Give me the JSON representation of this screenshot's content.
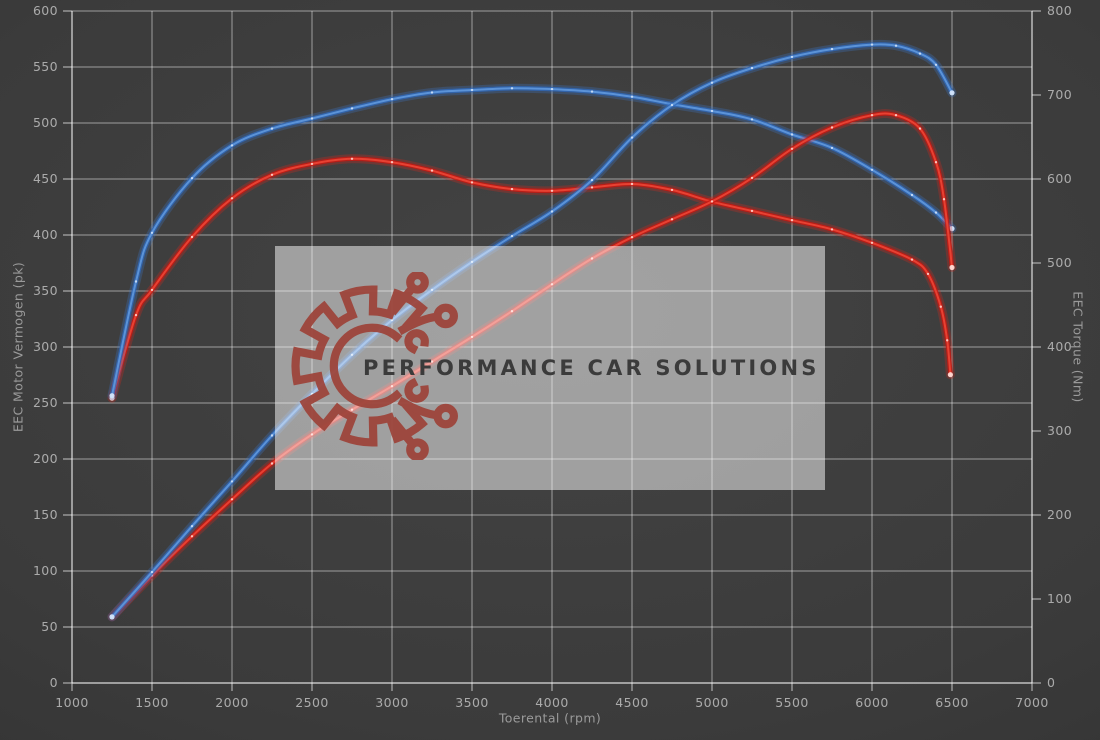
{
  "chart": {
    "x_axis": {
      "label": "Toerental (rpm)",
      "min": 1000,
      "max": 7000,
      "ticks": [
        1000,
        1500,
        2000,
        2500,
        3000,
        3500,
        4000,
        4500,
        5000,
        5500,
        6000,
        6500,
        7000
      ]
    },
    "y_left": {
      "label": "EEC Motor Vermogen (pk)",
      "min": 0,
      "max": 600,
      "ticks": [
        0,
        50,
        100,
        150,
        200,
        250,
        300,
        350,
        400,
        450,
        500,
        550,
        600
      ]
    },
    "y_right": {
      "label": "EEC Torque (Nm)",
      "min": 0,
      "max": 800,
      "ticks": [
        0,
        100,
        200,
        300,
        400,
        500,
        600,
        700,
        800
      ]
    }
  },
  "watermark": {
    "text": "PERFORMANCE CAR SOLUTIONS",
    "logo": "gear-circuit-icon"
  },
  "colors": {
    "background": "#3b3b3b",
    "grid": "rgba(255,255,255,0.5)",
    "axis": "rgba(255,255,255,0.7)",
    "tick_label": "#ababab",
    "axis_title": "#9a9a9a",
    "watermark_bg": "rgba(255,255,255,0.5)",
    "logo_red": "#9d4238",
    "logo_text": "#3b3b3b",
    "blue": {
      "glow": "rgba(62,122,210,0.28)",
      "mid": "rgba(47,105,190,0.75)",
      "core": "#5b93d8",
      "dot": "#d3e4fa"
    },
    "red": {
      "glow": "rgba(222,38,30,0.28)",
      "mid": "rgba(200,24,18,0.8)",
      "core": "#e84132",
      "dot": "#ffd9d3"
    }
  },
  "chart_data": {
    "type": "line",
    "title": "",
    "xlabel": "Toerental (rpm)",
    "ylabel_left": "EEC Motor Vermogen (pk)",
    "ylabel_right": "EEC Torque (Nm)",
    "xlim": [
      1000,
      7000
    ],
    "ylim_left": [
      0,
      600
    ],
    "ylim_right": [
      0,
      800
    ],
    "grid": true,
    "legend": "none",
    "series": [
      {
        "name": "torque-red",
        "axis": "right",
        "color": "red",
        "unit": "Nm",
        "points": [
          [
            1250,
            339
          ],
          [
            1400,
            438
          ],
          [
            1500,
            468
          ],
          [
            1750,
            531
          ],
          [
            2000,
            577
          ],
          [
            2250,
            605
          ],
          [
            2500,
            618
          ],
          [
            2750,
            624
          ],
          [
            3000,
            620
          ],
          [
            3250,
            610
          ],
          [
            3500,
            596
          ],
          [
            3750,
            588
          ],
          [
            4000,
            586
          ],
          [
            4250,
            590
          ],
          [
            4500,
            594
          ],
          [
            4750,
            587
          ],
          [
            5000,
            573
          ],
          [
            5250,
            562
          ],
          [
            5500,
            551
          ],
          [
            5750,
            540
          ],
          [
            6000,
            524
          ],
          [
            6250,
            504
          ],
          [
            6350,
            487
          ],
          [
            6430,
            448
          ],
          [
            6470,
            408
          ],
          [
            6490,
            367
          ]
        ]
      },
      {
        "name": "torque-blue",
        "axis": "right",
        "color": "blue",
        "unit": "Nm",
        "points": [
          [
            1250,
            342
          ],
          [
            1400,
            478
          ],
          [
            1500,
            536
          ],
          [
            1750,
            601
          ],
          [
            2000,
            640
          ],
          [
            2250,
            660
          ],
          [
            2500,
            672
          ],
          [
            2750,
            684
          ],
          [
            3000,
            695
          ],
          [
            3250,
            703
          ],
          [
            3500,
            706
          ],
          [
            3750,
            708
          ],
          [
            4000,
            707
          ],
          [
            4250,
            704
          ],
          [
            4500,
            698
          ],
          [
            4750,
            689
          ],
          [
            5000,
            681
          ],
          [
            5250,
            671
          ],
          [
            5500,
            653
          ],
          [
            5750,
            637
          ],
          [
            6000,
            611
          ],
          [
            6250,
            581
          ],
          [
            6400,
            560
          ],
          [
            6500,
            541
          ]
        ]
      },
      {
        "name": "power-red",
        "axis": "left",
        "color": "red",
        "unit": "pk",
        "points": [
          [
            1250,
            59
          ],
          [
            1500,
            96
          ],
          [
            1750,
            131
          ],
          [
            2000,
            164
          ],
          [
            2250,
            196
          ],
          [
            2500,
            222
          ],
          [
            2750,
            244
          ],
          [
            3000,
            265
          ],
          [
            3250,
            287
          ],
          [
            3500,
            309
          ],
          [
            3750,
            332
          ],
          [
            4000,
            356
          ],
          [
            4250,
            379
          ],
          [
            4500,
            398
          ],
          [
            4750,
            414
          ],
          [
            5000,
            430
          ],
          [
            5250,
            451
          ],
          [
            5500,
            477
          ],
          [
            5750,
            496
          ],
          [
            6000,
            507
          ],
          [
            6150,
            507
          ],
          [
            6300,
            495
          ],
          [
            6400,
            465
          ],
          [
            6450,
            432
          ],
          [
            6500,
            371
          ]
        ]
      },
      {
        "name": "power-blue",
        "axis": "left",
        "color": "blue",
        "unit": "pk",
        "points": [
          [
            1250,
            59
          ],
          [
            1500,
            99
          ],
          [
            1750,
            140
          ],
          [
            2000,
            180
          ],
          [
            2250,
            221
          ],
          [
            2500,
            258
          ],
          [
            2750,
            293
          ],
          [
            3000,
            324
          ],
          [
            3250,
            351
          ],
          [
            3500,
            376
          ],
          [
            3750,
            399
          ],
          [
            4000,
            421
          ],
          [
            4250,
            449
          ],
          [
            4500,
            487
          ],
          [
            4750,
            516
          ],
          [
            5000,
            536
          ],
          [
            5250,
            549
          ],
          [
            5500,
            559
          ],
          [
            5750,
            566
          ],
          [
            6000,
            570
          ],
          [
            6150,
            569
          ],
          [
            6300,
            562
          ],
          [
            6400,
            552
          ],
          [
            6500,
            527
          ]
        ]
      }
    ]
  }
}
